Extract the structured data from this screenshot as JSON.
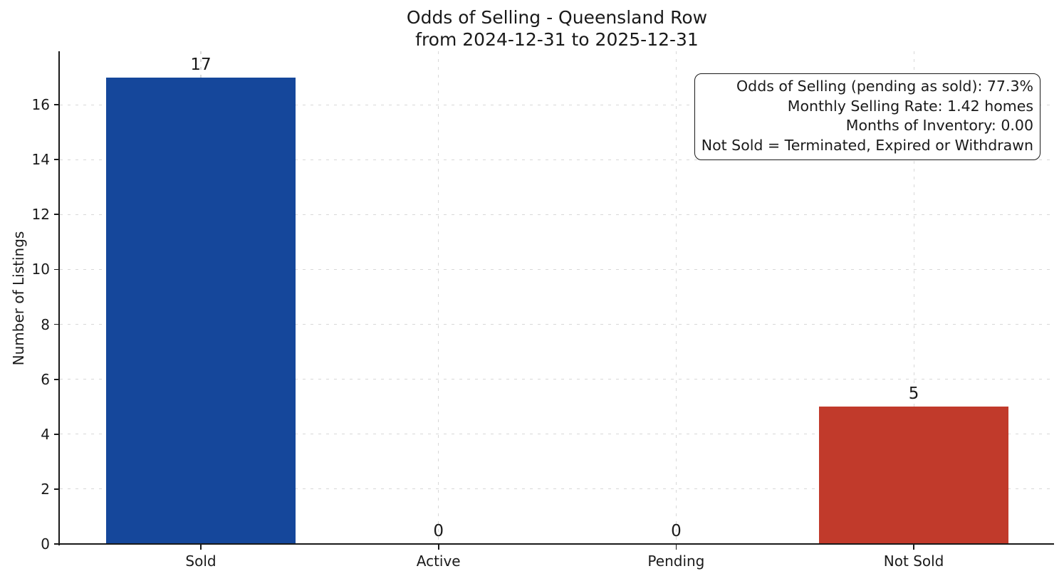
{
  "chart_data": {
    "type": "bar",
    "title": "Odds of Selling - Queensland Row",
    "subtitle": "from 2024-12-31 to 2025-12-31",
    "categories": [
      "Sold",
      "Active",
      "Pending",
      "Not Sold"
    ],
    "values": [
      17,
      0,
      0,
      5
    ],
    "bar_colors": [
      "#15479b",
      null,
      null,
      "#c13a2b"
    ],
    "xlabel": "",
    "ylabel": "Number of Listings",
    "ylim": [
      0,
      17.95
    ],
    "yticks": [
      0,
      2,
      4,
      6,
      8,
      10,
      12,
      14,
      16
    ],
    "grid": true,
    "grid_style": "dashed",
    "legend": null,
    "annotation": {
      "position": "top-right",
      "align": "right",
      "lines": [
        "Odds of Selling (pending as sold): 77.3%",
        "Monthly Selling Rate: 1.42 homes",
        "Months of Inventory: 0.00",
        "Not Sold = Terminated, Expired or Withdrawn"
      ]
    },
    "colors": {
      "sold_bar": "#15479b",
      "not_sold_bar": "#c13a2b",
      "grid": "#d8d8d8",
      "axis": "#1a1a1a",
      "text": "#1a1a1a",
      "background": "#ffffff"
    }
  }
}
